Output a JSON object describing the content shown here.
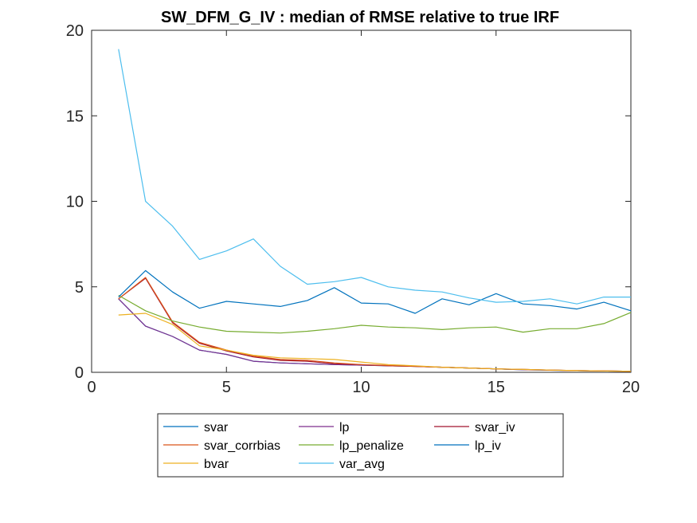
{
  "chart_data": {
    "type": "line",
    "title": "SW_DFM_G_IV : median of RMSE relative to true IRF",
    "xlabel": "",
    "ylabel": "",
    "xlim": [
      0,
      20
    ],
    "ylim": [
      0,
      20
    ],
    "xticks": [
      0,
      5,
      10,
      15,
      20
    ],
    "yticks": [
      0,
      5,
      10,
      15,
      20
    ],
    "grid": false,
    "legend_position": "bottom-outside",
    "legend_columns": 3,
    "x": [
      1,
      2,
      3,
      4,
      5,
      6,
      7,
      8,
      9,
      10,
      11,
      12,
      13,
      14,
      15,
      16,
      17,
      18,
      19,
      20
    ],
    "series": [
      {
        "name": "svar",
        "color": "#0072BD",
        "values": [
          4.3,
          2.7,
          2.1,
          1.3,
          1.05,
          0.65,
          0.55,
          0.5,
          0.45,
          0.42,
          0.38,
          0.35,
          0.3,
          0.25,
          0.2,
          0.15,
          0.12,
          0.1,
          0.08,
          0.06
        ]
      },
      {
        "name": "lp",
        "color": "#7E2F8E",
        "values": [
          4.3,
          2.7,
          2.1,
          1.3,
          1.05,
          0.65,
          0.55,
          0.5,
          0.45,
          0.42,
          0.38,
          0.35,
          0.3,
          0.25,
          0.2,
          0.15,
          0.12,
          0.1,
          0.08,
          0.06
        ]
      },
      {
        "name": "svar_iv",
        "color": "#A2142F",
        "values": [
          4.3,
          5.5,
          2.9,
          1.7,
          1.25,
          0.9,
          0.7,
          0.65,
          0.5,
          0.45,
          0.38,
          0.35,
          0.3,
          0.25,
          0.2,
          0.17,
          0.13,
          0.1,
          0.08,
          0.06
        ]
      },
      {
        "name": "svar_corrbias",
        "color": "#D95319",
        "values": [
          4.3,
          5.55,
          2.95,
          1.75,
          1.3,
          0.95,
          0.75,
          0.7,
          0.55,
          0.45,
          0.4,
          0.35,
          0.3,
          0.25,
          0.2,
          0.17,
          0.13,
          0.1,
          0.08,
          0.06
        ]
      },
      {
        "name": "lp_penalize",
        "color": "#77AC30",
        "values": [
          4.5,
          3.6,
          3.0,
          2.65,
          2.4,
          2.35,
          2.3,
          2.4,
          2.55,
          2.75,
          2.65,
          2.6,
          2.5,
          2.6,
          2.65,
          2.35,
          2.55,
          2.55,
          2.85,
          3.5
        ]
      },
      {
        "name": "lp_iv",
        "color": "#0072BD",
        "values": [
          4.4,
          5.95,
          4.7,
          3.75,
          4.15,
          4.0,
          3.85,
          4.2,
          4.95,
          4.05,
          4.0,
          3.45,
          4.3,
          3.95,
          4.6,
          4.0,
          3.9,
          3.7,
          4.1,
          3.6
        ]
      },
      {
        "name": "bvar",
        "color": "#EDB120",
        "values": [
          3.35,
          3.45,
          2.8,
          1.55,
          1.3,
          1.0,
          0.85,
          0.8,
          0.75,
          0.6,
          0.45,
          0.38,
          0.3,
          0.25,
          0.2,
          0.17,
          0.13,
          0.1,
          0.08,
          0.06
        ]
      },
      {
        "name": "var_avg",
        "color": "#4DBEEE",
        "values": [
          18.9,
          10.0,
          8.55,
          6.6,
          7.1,
          7.8,
          6.2,
          5.15,
          5.3,
          5.55,
          5.0,
          4.8,
          4.7,
          4.35,
          4.1,
          4.15,
          4.3,
          4.0,
          4.4,
          4.4
        ]
      }
    ]
  }
}
